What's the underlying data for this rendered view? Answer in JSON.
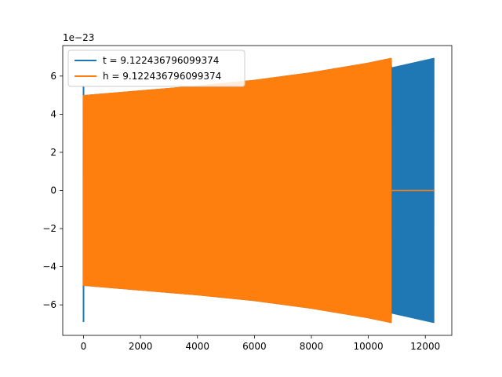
{
  "chart_data": {
    "type": "line",
    "title": "",
    "xlabel": "",
    "ylabel": "",
    "xlim": [
      -730,
      12930
    ],
    "ylim": [
      -7.6,
      7.6
    ],
    "y_offset_label": "1e−23",
    "x_ticks": [
      0,
      2000,
      4000,
      6000,
      8000,
      10000,
      12000
    ],
    "x_tick_labels": [
      "0",
      "2000",
      "4000",
      "6000",
      "8000",
      "10000",
      "12000"
    ],
    "y_ticks": [
      -6,
      -4,
      -2,
      0,
      2,
      4,
      6
    ],
    "y_tick_labels": [
      "−6",
      "−4",
      "−2",
      "0",
      "2",
      "4",
      "6"
    ],
    "grid": false,
    "legend_position": "top-left",
    "series": [
      {
        "name": "t = 9.122436796099374",
        "color": "#1f77b4",
        "style": "dense-oscillation",
        "envelope_x": [
          0,
          2000,
          4000,
          6000,
          8000,
          10000,
          10800,
          10810,
          12300
        ],
        "envelope_upper": [
          5.0,
          5.25,
          5.5,
          5.8,
          6.2,
          6.7,
          6.95,
          6.45,
          6.95
        ],
        "envelope_lower": [
          -5.0,
          -5.25,
          -5.5,
          -5.8,
          -6.2,
          -6.7,
          -6.95,
          -6.45,
          -6.95
        ],
        "end_x": 12300,
        "start_spike": [
          -6.9,
          5.5
        ]
      },
      {
        "name": "h = 9.122436796099374",
        "color": "#ff7f0e",
        "style": "dense-oscillation",
        "envelope_x": [
          0,
          2000,
          4000,
          6000,
          8000,
          10000,
          10800
        ],
        "envelope_upper": [
          5.0,
          5.25,
          5.5,
          5.8,
          6.2,
          6.7,
          6.95
        ],
        "envelope_lower": [
          -5.0,
          -5.25,
          -5.5,
          -5.8,
          -6.2,
          -6.7,
          -6.95
        ],
        "end_x": 10800,
        "zero_tail_x": [
          10800,
          12300
        ]
      }
    ]
  }
}
